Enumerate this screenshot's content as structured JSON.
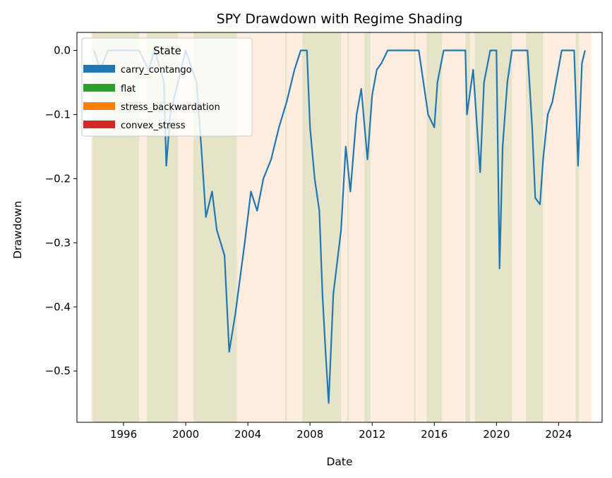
{
  "chart_data": {
    "type": "line",
    "title": "SPY Drawdown with Regime Shading",
    "xlabel": "Date",
    "ylabel": "Drawdown",
    "xlim": [
      1993.0,
      2026.8
    ],
    "ylim": [
      -0.58,
      0.028
    ],
    "x_ticks": [
      1996,
      2000,
      2004,
      2008,
      2012,
      2016,
      2020,
      2024
    ],
    "y_ticks": [
      0.0,
      -0.1,
      -0.2,
      -0.3,
      -0.4,
      -0.5
    ],
    "y_tick_labels": [
      "0.0",
      "−0.1",
      "−0.2",
      "−0.3",
      "−0.4",
      "−0.5"
    ],
    "grid": false,
    "legend": {
      "title": "State",
      "placement": "top-left",
      "entries": [
        {
          "label": "carry_contango",
          "color": "#1f77b4"
        },
        {
          "label": "flat",
          "color": "#2ca02c"
        },
        {
          "label": "stress_backwardation",
          "color": "#ff7f0e"
        },
        {
          "label": "convex_stress",
          "color": "#d62728"
        }
      ]
    },
    "series": [
      {
        "color": "#1f77b4",
        "x": [
          1994.1,
          1994.5,
          1995.0,
          1996.0,
          1997.0,
          1997.6,
          1998.0,
          1998.6,
          1998.75,
          1999.0,
          1999.5,
          2000.0,
          2000.7,
          2001.0,
          2001.3,
          2001.7,
          2002.0,
          2002.5,
          2002.8,
          2003.2,
          2003.8,
          2004.2,
          2004.6,
          2005.0,
          2005.5,
          2006.0,
          2006.5,
          2007.0,
          2007.4,
          2007.8,
          2008.0,
          2008.3,
          2008.6,
          2008.8,
          2009.0,
          2009.2,
          2009.5,
          2010.0,
          2010.3,
          2010.6,
          2011.0,
          2011.3,
          2011.7,
          2012.0,
          2012.3,
          2012.6,
          2013.0,
          2014.0,
          2015.0,
          2015.6,
          2016.0,
          2016.2,
          2016.6,
          2017.0,
          2018.0,
          2018.1,
          2018.5,
          2018.95,
          2019.2,
          2019.6,
          2020.0,
          2020.2,
          2020.4,
          2020.7,
          2021.0,
          2021.5,
          2022.0,
          2022.3,
          2022.5,
          2022.8,
          2023.0,
          2023.3,
          2023.6,
          2023.9,
          2024.2,
          2024.6,
          2025.0,
          2025.25,
          2025.5,
          2025.7
        ],
        "y": [
          0.0,
          -0.03,
          0.0,
          0.0,
          0.0,
          -0.03,
          0.0,
          -0.05,
          -0.18,
          -0.1,
          -0.05,
          0.0,
          -0.05,
          -0.15,
          -0.26,
          -0.22,
          -0.28,
          -0.32,
          -0.47,
          -0.41,
          -0.3,
          -0.22,
          -0.25,
          -0.2,
          -0.17,
          -0.12,
          -0.08,
          -0.03,
          0.0,
          0.0,
          -0.12,
          -0.2,
          -0.25,
          -0.38,
          -0.47,
          -0.55,
          -0.38,
          -0.28,
          -0.15,
          -0.22,
          -0.1,
          -0.06,
          -0.17,
          -0.07,
          -0.03,
          -0.02,
          0.0,
          0.0,
          0.0,
          -0.1,
          -0.12,
          -0.05,
          0.0,
          0.0,
          0.0,
          -0.1,
          -0.03,
          -0.19,
          -0.05,
          0.0,
          0.0,
          -0.34,
          -0.15,
          -0.05,
          0.0,
          0.0,
          0.0,
          -0.12,
          -0.23,
          -0.24,
          -0.17,
          -0.1,
          -0.08,
          -0.04,
          0.0,
          0.0,
          0.0,
          -0.18,
          -0.02,
          0.0
        ]
      }
    ],
    "regime_shading": [
      {
        "state": "flat",
        "color": "#2ca02c",
        "spans": [
          [
            1994.0,
            1996.0
          ],
          [
            1996.0,
            1997.0
          ],
          [
            1997.5,
            1999.5
          ],
          [
            2000.5,
            2003.3
          ],
          [
            2006.4,
            2006.5
          ],
          [
            2007.5,
            2010.0
          ],
          [
            2010.4,
            2010.5
          ],
          [
            2011.5,
            2011.9
          ],
          [
            2014.7,
            2014.8
          ],
          [
            2015.5,
            2016.5
          ],
          [
            2018.0,
            2018.3
          ],
          [
            2018.6,
            2021.0
          ],
          [
            2021.9,
            2023.0
          ],
          [
            2025.1,
            2025.3
          ]
        ]
      },
      {
        "state": "stress_backwardation",
        "color": "#ff7f0e",
        "spans": [
          [
            1993.9,
            2026.1
          ]
        ]
      }
    ]
  }
}
